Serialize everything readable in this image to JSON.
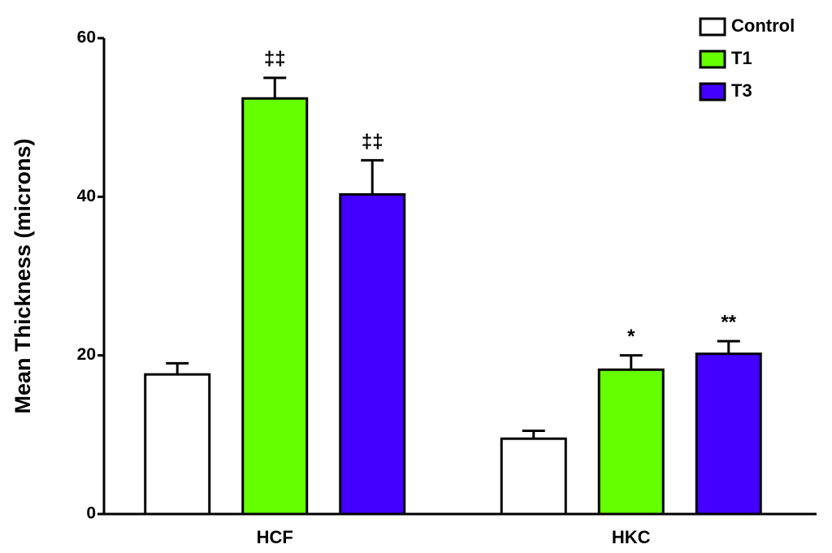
{
  "chart_data": {
    "type": "bar",
    "y_label": "Mean Thickness (microns)",
    "categories": [
      "HCF",
      "HKC"
    ],
    "series": [
      {
        "name": "Control",
        "color": "#ffffff",
        "values": [
          17.6,
          9.5
        ],
        "errors": [
          1.4,
          1.0
        ]
      },
      {
        "name": "T1",
        "color": "#66ff00",
        "values": [
          52.4,
          18.2
        ],
        "errors": [
          2.6,
          1.8
        ],
        "annotations": [
          "‡‡",
          "*"
        ]
      },
      {
        "name": "T3",
        "color": "#4400ff",
        "values": [
          40.3,
          20.2
        ],
        "errors": [
          4.3,
          1.6
        ],
        "annotations": [
          "‡‡",
          "**"
        ]
      }
    ],
    "ylim": [
      0,
      60
    ],
    "yticks": [
      0,
      20,
      40,
      60
    ],
    "legend": "top-right"
  }
}
